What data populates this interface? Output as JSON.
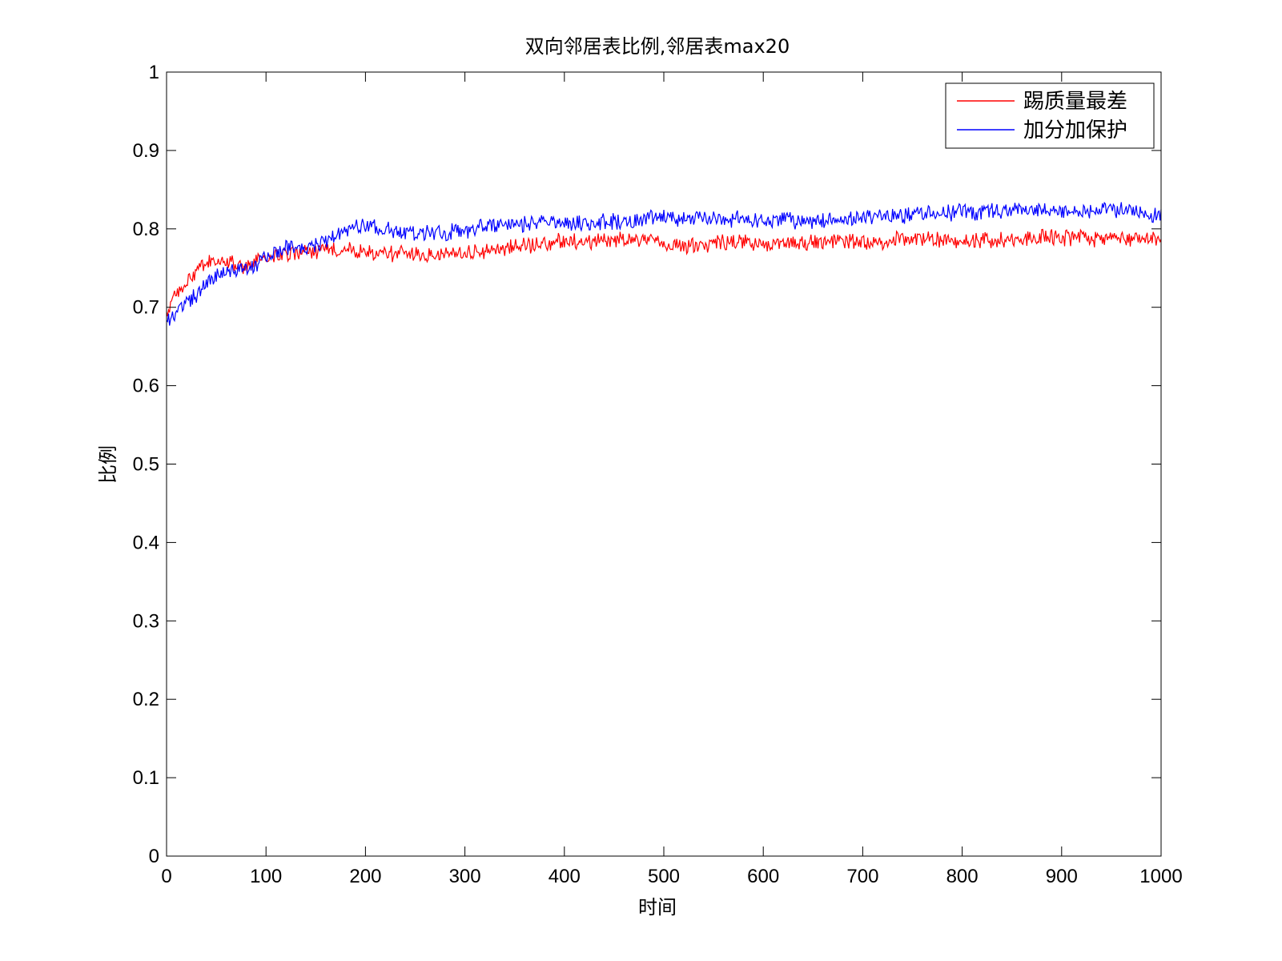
{
  "chart_data": {
    "type": "line",
    "title": "双向邻居表比例,邻居表max20",
    "xlabel": "时间",
    "ylabel": "比例",
    "xlim": [
      0,
      1000
    ],
    "ylim": [
      0,
      1
    ],
    "xticks": [
      0,
      100,
      200,
      300,
      400,
      500,
      600,
      700,
      800,
      900,
      1000
    ],
    "xtick_labels": [
      "0",
      "100",
      "200",
      "300",
      "400",
      "500",
      "600",
      "700",
      "800",
      "900",
      "1000"
    ],
    "yticks": [
      0,
      0.1,
      0.2,
      0.3,
      0.4,
      0.5,
      0.6,
      0.7,
      0.8,
      0.9,
      1
    ],
    "ytick_labels": [
      "0",
      "0.1",
      "0.2",
      "0.3",
      "0.4",
      "0.5",
      "0.6",
      "0.7",
      "0.8",
      "0.9",
      "1"
    ],
    "grid": false,
    "legend_position": "top-right",
    "series": [
      {
        "name": "踢质量最差",
        "color": "#ff0000",
        "x": [
          0,
          5,
          10,
          15,
          20,
          30,
          40,
          50,
          60,
          70,
          80,
          90,
          100,
          120,
          140,
          160,
          180,
          200,
          220,
          240,
          260,
          280,
          300,
          320,
          340,
          360,
          380,
          400,
          420,
          440,
          460,
          480,
          500,
          520,
          540,
          560,
          580,
          600,
          620,
          640,
          660,
          680,
          700,
          720,
          740,
          760,
          780,
          800,
          820,
          840,
          860,
          880,
          900,
          920,
          940,
          960,
          980,
          1000
        ],
        "y": [
          0.69,
          0.705,
          0.715,
          0.725,
          0.73,
          0.745,
          0.755,
          0.76,
          0.755,
          0.755,
          0.752,
          0.758,
          0.762,
          0.768,
          0.77,
          0.772,
          0.775,
          0.77,
          0.768,
          0.77,
          0.765,
          0.768,
          0.77,
          0.772,
          0.775,
          0.778,
          0.782,
          0.785,
          0.783,
          0.785,
          0.788,
          0.785,
          0.78,
          0.778,
          0.78,
          0.782,
          0.783,
          0.78,
          0.78,
          0.783,
          0.782,
          0.785,
          0.783,
          0.785,
          0.787,
          0.788,
          0.786,
          0.784,
          0.786,
          0.787,
          0.788,
          0.79,
          0.788,
          0.788,
          0.787,
          0.789,
          0.788,
          0.787
        ]
      },
      {
        "name": "加分加保护",
        "color": "#0000ff",
        "x": [
          0,
          5,
          10,
          15,
          20,
          30,
          40,
          50,
          60,
          70,
          80,
          90,
          100,
          110,
          120,
          140,
          160,
          180,
          200,
          220,
          240,
          260,
          280,
          300,
          320,
          340,
          360,
          380,
          400,
          420,
          440,
          460,
          480,
          500,
          520,
          540,
          560,
          580,
          600,
          620,
          640,
          660,
          680,
          700,
          720,
          740,
          760,
          780,
          800,
          820,
          840,
          860,
          880,
          900,
          920,
          940,
          960,
          980,
          1000
        ],
        "y": [
          0.69,
          0.685,
          0.695,
          0.7,
          0.705,
          0.715,
          0.73,
          0.74,
          0.745,
          0.75,
          0.752,
          0.756,
          0.765,
          0.772,
          0.778,
          0.775,
          0.785,
          0.8,
          0.805,
          0.798,
          0.795,
          0.797,
          0.795,
          0.798,
          0.803,
          0.805,
          0.806,
          0.807,
          0.808,
          0.807,
          0.808,
          0.81,
          0.813,
          0.815,
          0.812,
          0.815,
          0.813,
          0.812,
          0.81,
          0.811,
          0.809,
          0.81,
          0.812,
          0.815,
          0.818,
          0.817,
          0.819,
          0.821,
          0.822,
          0.821,
          0.823,
          0.824,
          0.822,
          0.821,
          0.823,
          0.825,
          0.824,
          0.822,
          0.818
        ]
      }
    ]
  }
}
